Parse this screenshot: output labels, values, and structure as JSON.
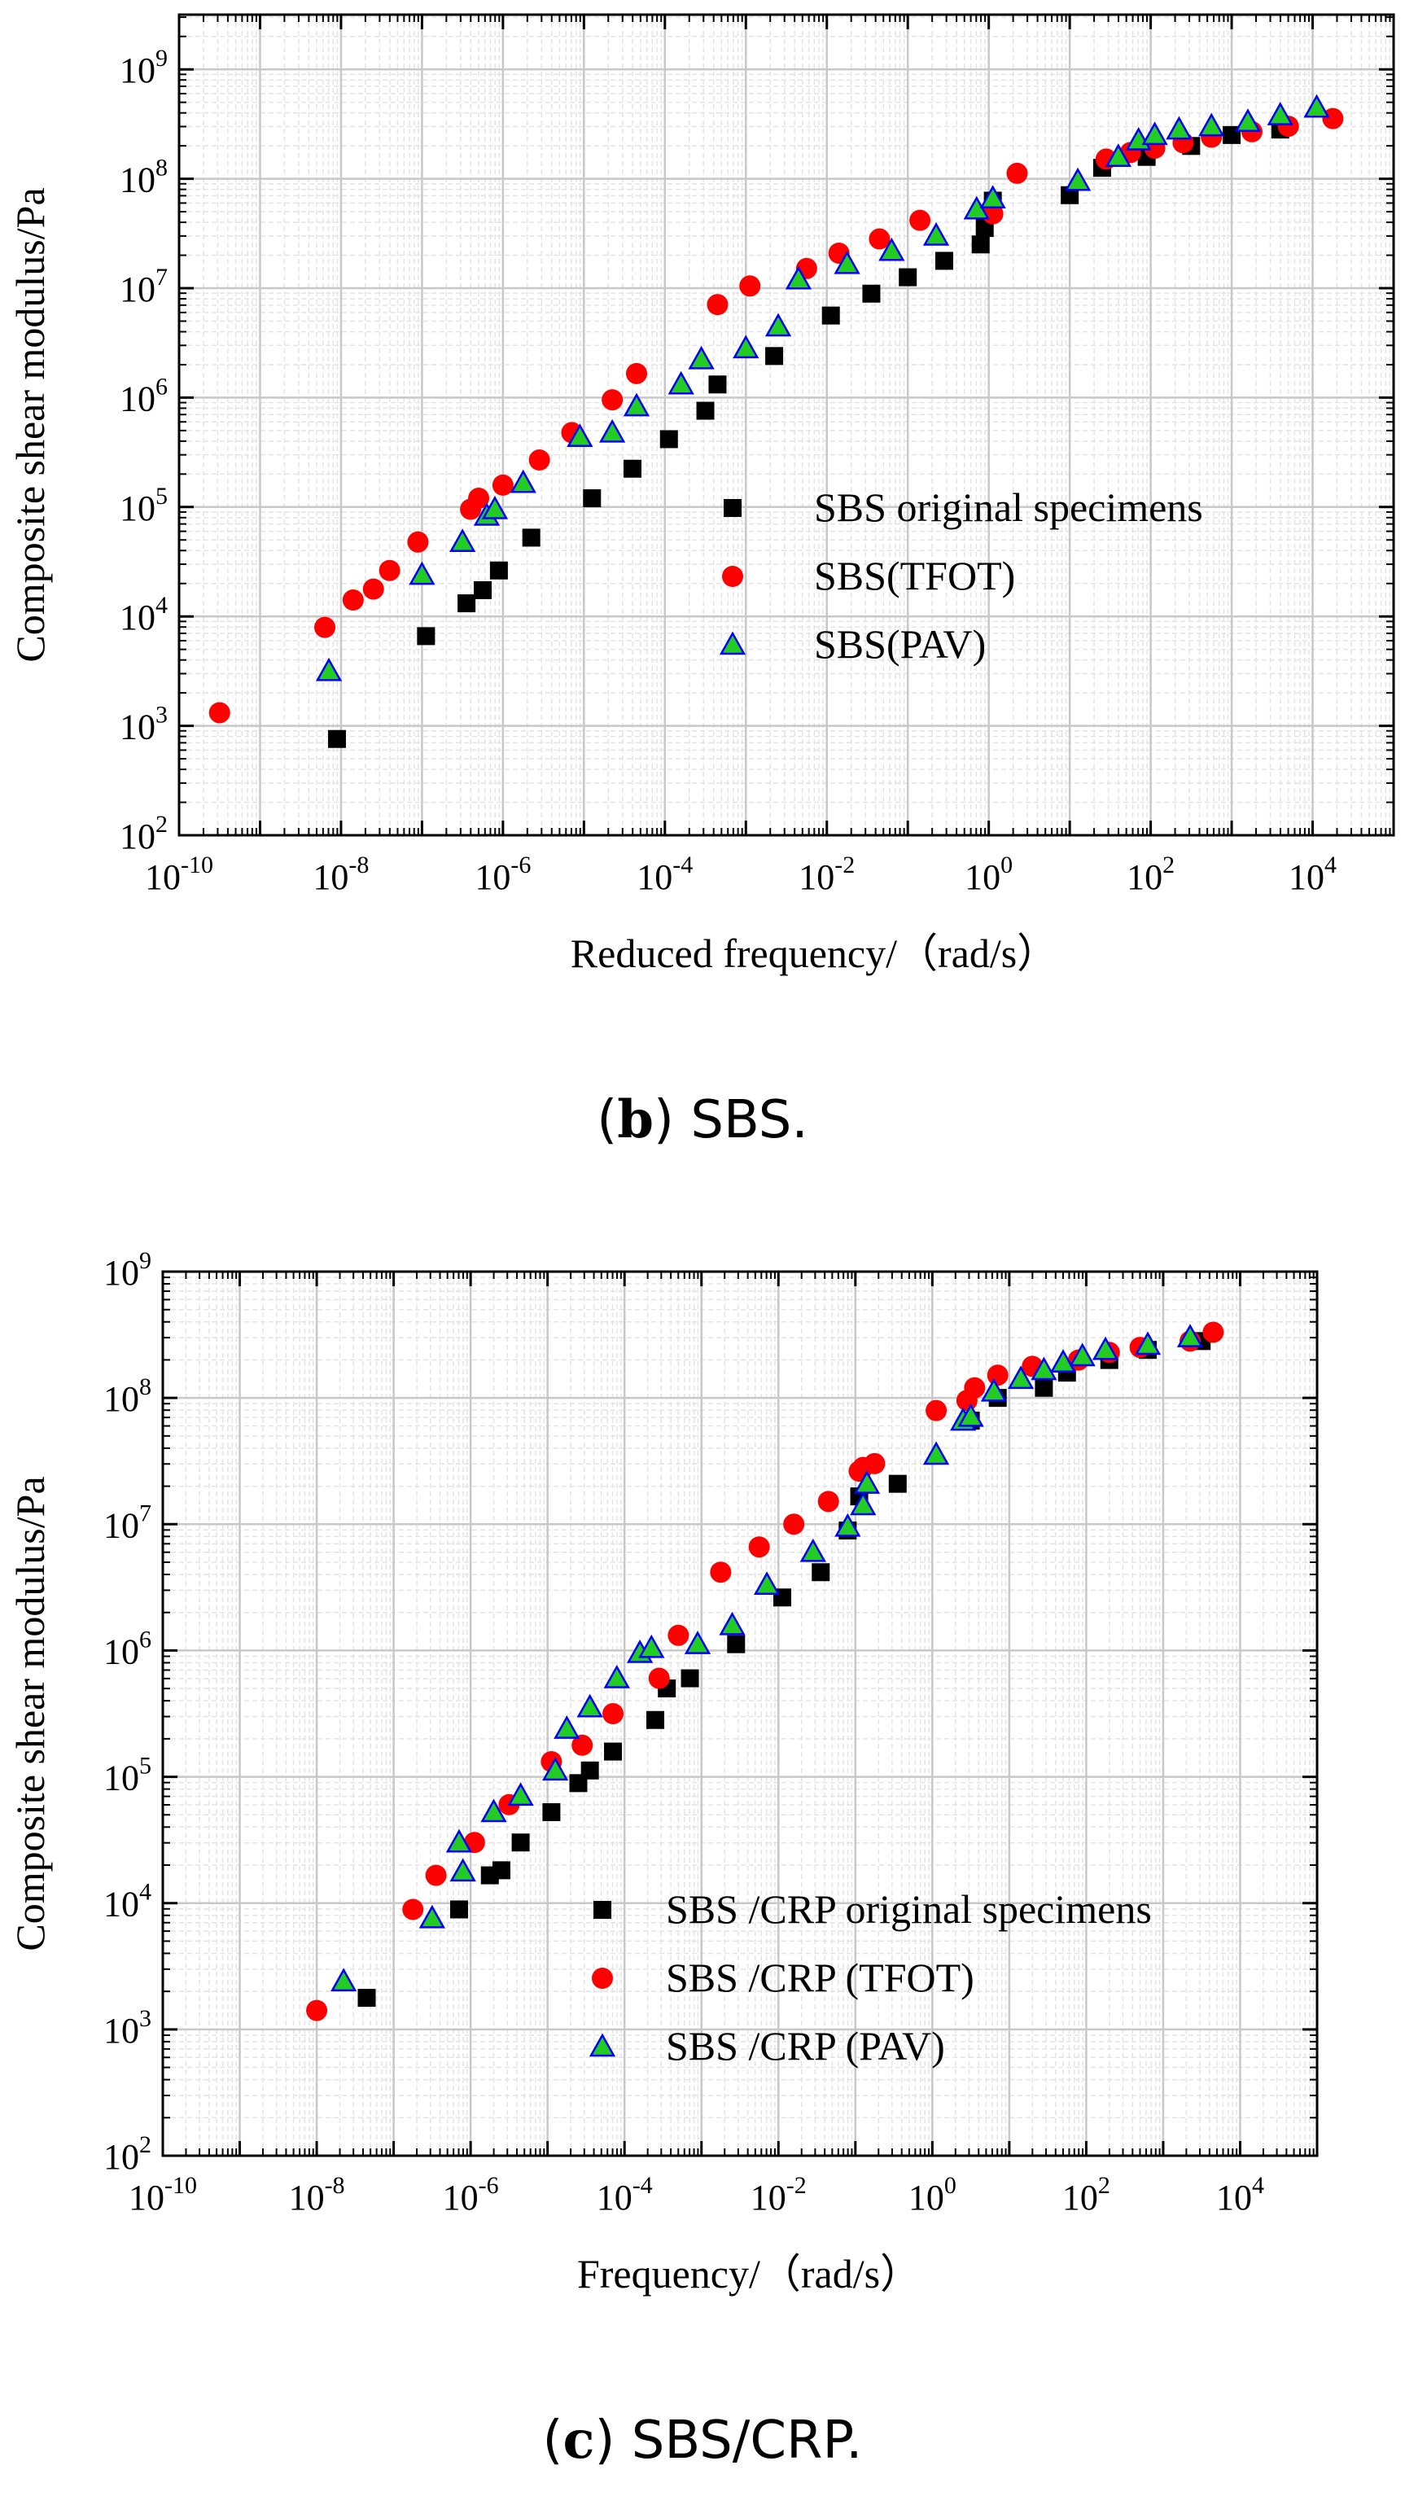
{
  "colors": {
    "original": "#000000",
    "tfot": "#ff0000",
    "pav": "#22cc22",
    "pav_edge": "#0000ff",
    "grid_major": "#c8c8c8",
    "grid_minor": "#e4e4e4"
  },
  "captions": {
    "b": {
      "open": "(",
      "letter": "b",
      "close": ")",
      "text": " SBS."
    },
    "c": {
      "open": "(",
      "letter": "c",
      "close": ")",
      "text": " SBS/CRP."
    }
  },
  "chart_data": [
    {
      "type": "scatter",
      "panel": "b",
      "title": "",
      "xlabel": "Reduced frequency/（rad/s）",
      "ylabel": "Composite shear modulus/Pa",
      "xscale": "log",
      "yscale": "log",
      "xlim_exp": [
        -10,
        5
      ],
      "ylim_exp": [
        2,
        9.5
      ],
      "x_ticks": [
        "10-10",
        "10-8",
        "10-6",
        "10-4",
        "10-2",
        "100",
        "102",
        "104"
      ],
      "x_tick_exps": [
        -10,
        -8,
        -6,
        -4,
        -2,
        0,
        2,
        4
      ],
      "y_ticks": [
        "102",
        "103",
        "104",
        "105",
        "106",
        "107",
        "108",
        "109"
      ],
      "y_tick_exps": [
        2,
        3,
        4,
        5,
        6,
        7,
        8,
        9
      ],
      "grid": true,
      "legend_position": "center-right",
      "series": [
        {
          "name": "SBS original specimens",
          "marker": "square",
          "log10_x": [
            -8.05,
            -6.95,
            -6.45,
            -6.25,
            -6.05,
            -5.65,
            -4.9,
            -4.4,
            -3.95,
            -3.5,
            -3.35,
            -2.65,
            -1.95,
            -1.45,
            -1.0,
            -0.55,
            -0.1,
            -0.05,
            0.05,
            1.0,
            1.4,
            1.95,
            2.5,
            3.0,
            3.6
          ],
          "log10_y": [
            2.88,
            3.82,
            4.12,
            4.24,
            4.42,
            4.72,
            5.08,
            5.35,
            5.62,
            5.88,
            6.12,
            6.38,
            6.75,
            6.95,
            7.1,
            7.25,
            7.4,
            7.55,
            7.8,
            7.85,
            8.1,
            8.2,
            8.3,
            8.4,
            8.45
          ]
        },
        {
          "name": "SBS(TFOT)",
          "marker": "circle",
          "log10_x": [
            -9.5,
            -8.2,
            -7.85,
            -7.6,
            -7.4,
            -7.05,
            -6.4,
            -6.3,
            -6.0,
            -5.55,
            -5.15,
            -4.65,
            -4.35,
            -3.35,
            -2.95,
            -2.25,
            -1.85,
            -1.35,
            -0.85,
            0.05,
            0.35,
            1.45,
            1.75,
            2.05,
            2.4,
            2.75,
            3.25,
            3.7,
            4.25
          ],
          "log10_y": [
            3.12,
            3.9,
            4.15,
            4.25,
            4.42,
            4.68,
            4.98,
            5.08,
            5.2,
            5.43,
            5.68,
            5.98,
            6.22,
            6.85,
            7.02,
            7.18,
            7.32,
            7.45,
            7.62,
            7.68,
            8.05,
            8.18,
            8.24,
            8.28,
            8.33,
            8.38,
            8.43,
            8.48,
            8.55
          ]
        },
        {
          "name": "SBS(PAV)",
          "marker": "triangle",
          "log10_x": [
            -8.15,
            -7.0,
            -6.5,
            -6.2,
            -6.1,
            -5.75,
            -5.05,
            -4.65,
            -4.35,
            -3.8,
            -3.55,
            -3.0,
            -2.6,
            -2.35,
            -1.75,
            -1.2,
            -0.65,
            -0.15,
            0.05,
            1.1,
            1.6,
            1.85,
            2.05,
            2.35,
            2.75,
            3.2,
            3.6,
            4.05
          ],
          "log10_y": [
            3.5,
            4.38,
            4.68,
            4.92,
            4.98,
            5.22,
            5.64,
            5.68,
            5.92,
            6.12,
            6.35,
            6.45,
            6.65,
            7.08,
            7.22,
            7.34,
            7.48,
            7.72,
            7.82,
            7.98,
            8.2,
            8.35,
            8.4,
            8.45,
            8.48,
            8.52,
            8.58,
            8.65
          ]
        }
      ]
    },
    {
      "type": "scatter",
      "panel": "c",
      "title": "",
      "xlabel": "Frequency/（rad/s）",
      "ylabel": "Composite shear modulus/Pa",
      "xscale": "log",
      "yscale": "log",
      "xlim_exp": [
        -10,
        5
      ],
      "ylim_exp": [
        2,
        9
      ],
      "x_ticks": [
        "10-10",
        "10-8",
        "10-6",
        "10-4",
        "10-2",
        "100",
        "102",
        "104"
      ],
      "x_tick_exps": [
        -10,
        -8,
        -6,
        -4,
        -2,
        0,
        2,
        4
      ],
      "y_ticks": [
        "102",
        "103",
        "104",
        "105",
        "106",
        "107",
        "108",
        "109"
      ],
      "y_tick_exps": [
        2,
        3,
        4,
        5,
        6,
        7,
        8,
        9
      ],
      "grid": true,
      "legend_position": "lower-right",
      "series": [
        {
          "name": "SBS /CRP original specimens",
          "marker": "square",
          "log10_x": [
            -7.35,
            -6.15,
            -5.75,
            -5.6,
            -5.35,
            -4.95,
            -4.6,
            -4.45,
            -4.15,
            -3.6,
            -3.45,
            -3.15,
            -2.55,
            -1.95,
            -1.45,
            -1.1,
            -0.95,
            -0.45,
            0.5,
            0.85,
            1.45,
            1.75,
            2.3,
            2.8,
            3.5
          ],
          "log10_y": [
            3.25,
            3.95,
            4.22,
            4.26,
            4.48,
            4.72,
            4.95,
            5.05,
            5.2,
            5.45,
            5.7,
            5.78,
            6.05,
            6.42,
            6.62,
            6.95,
            7.22,
            7.32,
            7.82,
            8.0,
            8.08,
            8.2,
            8.3,
            8.38,
            8.45
          ]
        },
        {
          "name": "SBS /CRP (TFOT)",
          "marker": "circle",
          "log10_x": [
            -8.0,
            -6.75,
            -6.45,
            -5.95,
            -5.5,
            -4.95,
            -4.55,
            -4.15,
            -3.55,
            -3.3,
            -2.75,
            -2.25,
            -1.8,
            -1.35,
            -0.95,
            -0.75,
            -0.9,
            0.05,
            0.45,
            0.55,
            0.85,
            1.3,
            1.9,
            2.3,
            2.7,
            3.35,
            3.65
          ],
          "log10_y": [
            3.15,
            3.95,
            4.22,
            4.48,
            4.78,
            5.12,
            5.25,
            5.5,
            5.78,
            6.12,
            6.62,
            6.82,
            7.0,
            7.18,
            7.42,
            7.48,
            7.45,
            7.9,
            7.98,
            8.08,
            8.18,
            8.25,
            8.3,
            8.36,
            8.4,
            8.45,
            8.52
          ]
        },
        {
          "name": "SBS /CRP (PAV)",
          "marker": "triangle",
          "log10_x": [
            -7.65,
            -6.5,
            -6.1,
            -6.15,
            -5.7,
            -5.35,
            -4.9,
            -4.75,
            -4.45,
            -4.1,
            -3.8,
            -3.65,
            -3.05,
            -2.6,
            -2.15,
            -1.55,
            -1.1,
            -0.9,
            -0.85,
            0.05,
            0.4,
            0.5,
            0.8,
            1.15,
            1.45,
            1.7,
            1.95,
            2.25,
            2.8,
            3.35
          ],
          "log10_y": [
            3.38,
            3.88,
            4.25,
            4.48,
            4.72,
            4.85,
            5.05,
            5.38,
            5.55,
            5.78,
            5.98,
            6.02,
            6.05,
            6.2,
            6.52,
            6.78,
            6.98,
            7.15,
            7.32,
            7.55,
            7.82,
            7.85,
            8.05,
            8.15,
            8.22,
            8.28,
            8.33,
            8.38,
            8.42,
            8.48
          ]
        }
      ]
    }
  ]
}
